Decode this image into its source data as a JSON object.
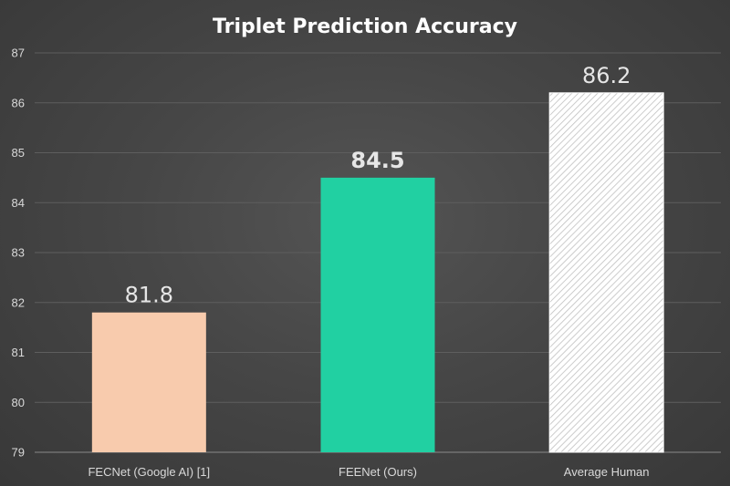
{
  "chart_data": {
    "type": "bar",
    "title": "Triplet Prediction Accuracy",
    "xlabel": "",
    "ylabel": "",
    "categories": [
      "FECNet (Google AI) [1]",
      "FEENet (Ours)",
      "Average Human"
    ],
    "values": [
      81.8,
      84.5,
      86.2
    ],
    "data_labels": [
      "81.8",
      "84.5",
      "86.2"
    ],
    "ylim": [
      79,
      87
    ],
    "yticks": [
      "79",
      "80",
      "81",
      "82",
      "83",
      "84",
      "85",
      "86",
      "87"
    ],
    "grid": true,
    "legend": "none",
    "bar_colors": [
      "#f8cbad",
      "#21d0a2",
      "hatched-white"
    ],
    "bold_labels": [
      false,
      true,
      false
    ]
  }
}
